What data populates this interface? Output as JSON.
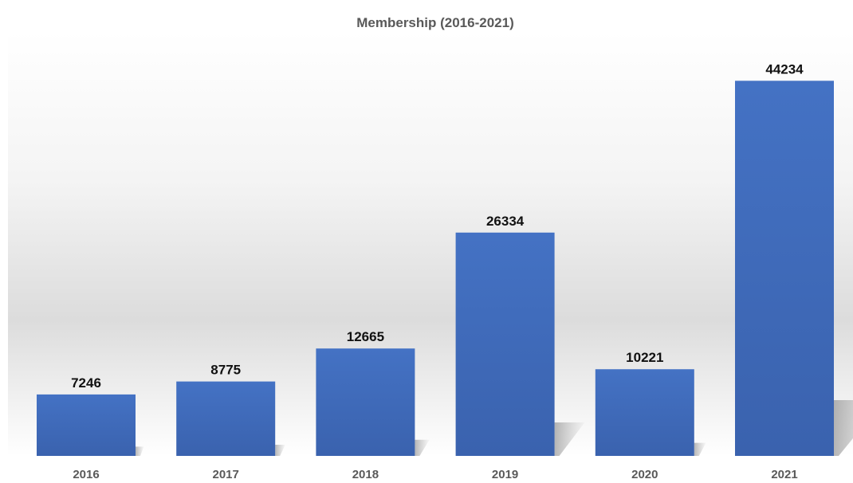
{
  "chart_data": {
    "type": "bar",
    "title": "Membership (2016-2021)",
    "xlabel": "",
    "ylabel": "",
    "categories": [
      "2016",
      "2017",
      "2018",
      "2019",
      "2020",
      "2021"
    ],
    "values": [
      7246,
      8775,
      12665,
      26334,
      10221,
      44234
    ],
    "ylim": [
      0,
      50000
    ],
    "grid": false,
    "legend": "none",
    "data_labels": true,
    "bar_color": "#4472C4",
    "bar_color_dark": "#3A62AE"
  }
}
